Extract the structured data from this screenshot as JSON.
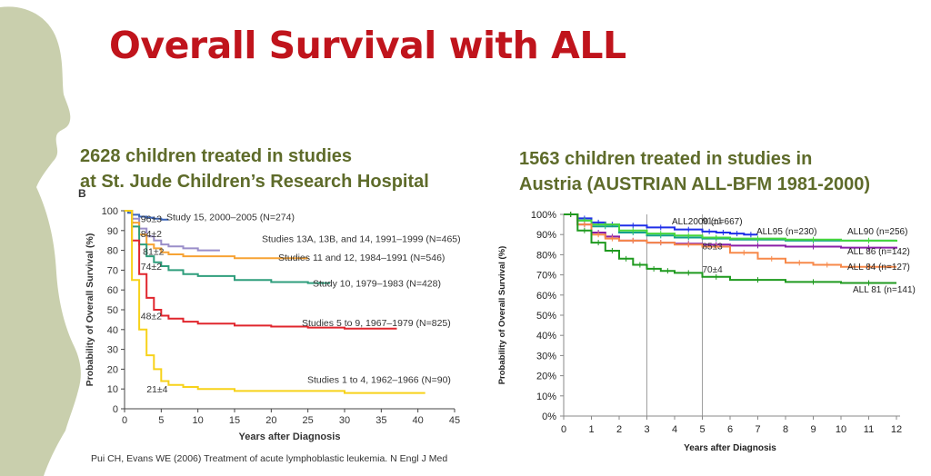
{
  "title": "Overall Survival with ALL",
  "left_heading": {
    "line1": "2628 children treated in studies",
    "line2": "at St. Jude Children’s Research Hospital"
  },
  "right_heading": {
    "line1": "1563 children treated in studies in",
    "line2": "Austria (AUSTRIAN ALL-BFM 1981-2000)"
  },
  "citation": "Pui CH, Evans WE (2006) Treatment of acute lymphoblastic  leukemia. N  Engl J Med",
  "colors": {
    "title": "#c0141c",
    "heading": "#5e6b2a",
    "silhouette": "#c9cfad"
  },
  "chart_data": [
    {
      "type": "line",
      "panel_label": "B",
      "xlabel": "Years after Diagnosis",
      "ylabel": "Probability of Overall Survival (%)",
      "xlim": [
        0,
        45
      ],
      "ylim": [
        0,
        100
      ],
      "xticks": [
        0,
        5,
        10,
        15,
        20,
        25,
        30,
        35,
        40,
        45
      ],
      "yticks": [
        0,
        10,
        20,
        30,
        40,
        50,
        60,
        70,
        80,
        90,
        100
      ],
      "series": [
        {
          "name": "Study 15, 2000–2005 (N=274)",
          "color": "#3a64b8",
          "x": [
            0,
            0.5,
            1,
            2,
            3,
            4,
            5,
            6
          ],
          "y": [
            100,
            99,
            98,
            97,
            96.5,
            96,
            95.5,
            95.5
          ]
        },
        {
          "name": "Studies 13A, 13B, and 14, 1991–1999 (N=465)",
          "color": "#9a8ec9",
          "x": [
            0,
            1,
            2,
            3,
            4,
            5,
            6,
            8,
            10,
            13
          ],
          "y": [
            100,
            96,
            91,
            87,
            85,
            83,
            82,
            81,
            80,
            80
          ]
        },
        {
          "name": "Studies 11 and 12, 1984–1991 (N=546)",
          "color": "#f7a335",
          "x": [
            0,
            1,
            2,
            3,
            4,
            5,
            6,
            8,
            10,
            15,
            20,
            25
          ],
          "y": [
            100,
            94,
            88,
            83,
            81,
            79,
            78,
            77,
            77,
            76,
            76,
            76
          ]
        },
        {
          "name": "Study 10, 1979–1983 (N=428)",
          "color": "#2f9e7c",
          "x": [
            0,
            1,
            2,
            3,
            4,
            5,
            6,
            8,
            10,
            15,
            20,
            25,
            28
          ],
          "y": [
            100,
            92,
            83,
            77,
            74,
            72,
            70,
            68,
            67,
            65,
            64,
            63.5,
            63.5
          ]
        },
        {
          "name": "Studies 5 to 9, 1967–1979 (N=825)",
          "color": "#e0262d",
          "x": [
            0,
            1,
            2,
            3,
            4,
            5,
            6,
            8,
            10,
            15,
            20,
            25,
            30,
            37
          ],
          "y": [
            100,
            85,
            68,
            56,
            50,
            47,
            45.5,
            44,
            43,
            42,
            41.5,
            41,
            40.5,
            40
          ]
        },
        {
          "name": "Studies 1 to 4, 1962–1966 (N=90)",
          "color": "#f7d21a",
          "x": [
            0,
            1,
            2,
            3,
            4,
            5,
            6,
            8,
            10,
            15,
            20,
            30,
            41
          ],
          "y": [
            100,
            65,
            40,
            27,
            20,
            14,
            12,
            11,
            10,
            9,
            9,
            8,
            8
          ]
        }
      ],
      "annotations": [
        {
          "text": "96±3",
          "x": 2.2,
          "y": 96
        },
        {
          "text": "84±2",
          "x": 2.2,
          "y": 88.5
        },
        {
          "text": "81±2",
          "x": 2.5,
          "y": 79.5
        },
        {
          "text": "74±2",
          "x": 2.2,
          "y": 72
        },
        {
          "text": "48±2",
          "x": 2.2,
          "y": 47
        },
        {
          "text": "21±4",
          "x": 3.0,
          "y": 10
        }
      ]
    },
    {
      "type": "line",
      "xlabel": "Years after Diagnosis",
      "ylabel": "Probability of Overall Survival (%)",
      "xlim": [
        0,
        12
      ],
      "ylim": [
        0,
        100
      ],
      "xticks": [
        0,
        1,
        2,
        3,
        4,
        5,
        6,
        7,
        8,
        9,
        10,
        11,
        12
      ],
      "yticks": [
        "0%",
        "10%",
        "20%",
        "30%",
        "40%",
        "50%",
        "60%",
        "70%",
        "80%",
        "90%",
        "100%"
      ],
      "vlines": [
        3,
        5
      ],
      "series": [
        {
          "name": "ALL2000 (n=667)",
          "color": "#1f2fe8",
          "x": [
            0,
            0.5,
            1,
            1.5,
            2,
            3,
            4,
            5,
            5.5,
            6,
            6.5,
            7
          ],
          "y": [
            100,
            98,
            96,
            95,
            94.5,
            93.5,
            92.5,
            91.5,
            91,
            90.5,
            90,
            90
          ]
        },
        {
          "name": "ALL95 (n=230)",
          "color": "#12a08c",
          "x": [
            0,
            0.5,
            1,
            2,
            3,
            4,
            5,
            6,
            8,
            10,
            12
          ],
          "y": [
            100,
            97,
            94,
            91,
            89.5,
            88.5,
            88,
            87.5,
            87,
            87,
            87
          ]
        },
        {
          "name": "ALL90 (n=256)",
          "color": "#46d63c",
          "x": [
            0,
            0.5,
            1,
            2,
            3,
            4,
            5,
            6,
            8,
            10,
            12
          ],
          "y": [
            100,
            97,
            95,
            92,
            90.5,
            89.5,
            88.5,
            88,
            87.5,
            87,
            86.5
          ]
        },
        {
          "name": "ALL 86 (n=142)",
          "color": "#8a1fa8",
          "x": [
            0,
            0.5,
            1,
            1.5,
            2,
            3,
            4,
            5,
            6,
            8,
            10,
            12
          ],
          "y": [
            100,
            95,
            91,
            89,
            87,
            86,
            85.5,
            85,
            84.5,
            84,
            83.5,
            83
          ]
        },
        {
          "name": "ALL 84 (n=127)",
          "color": "#f7894a",
          "x": [
            0,
            0.5,
            1,
            1.5,
            2,
            3,
            4,
            5,
            6,
            7,
            8,
            9,
            10,
            12
          ],
          "y": [
            100,
            95,
            90,
            88,
            87,
            86,
            85,
            84,
            81,
            78,
            76,
            75,
            74,
            74
          ]
        },
        {
          "name": "ALL 81 (n=141)",
          "color": "#1f9a1f",
          "x": [
            0,
            0.5,
            1,
            1.5,
            2,
            2.5,
            3,
            3.5,
            4,
            5,
            6,
            8,
            10,
            12
          ],
          "y": [
            100,
            92,
            86,
            82,
            78,
            75,
            73,
            72,
            71,
            69,
            67.5,
            66.5,
            66,
            66
          ]
        }
      ],
      "annotations": [
        {
          "text": "91±1",
          "x": 5.0,
          "y": 97
        },
        {
          "text": "85±3",
          "x": 5.0,
          "y": 84.5
        },
        {
          "text": "70±4",
          "x": 5.0,
          "y": 73
        }
      ]
    }
  ]
}
